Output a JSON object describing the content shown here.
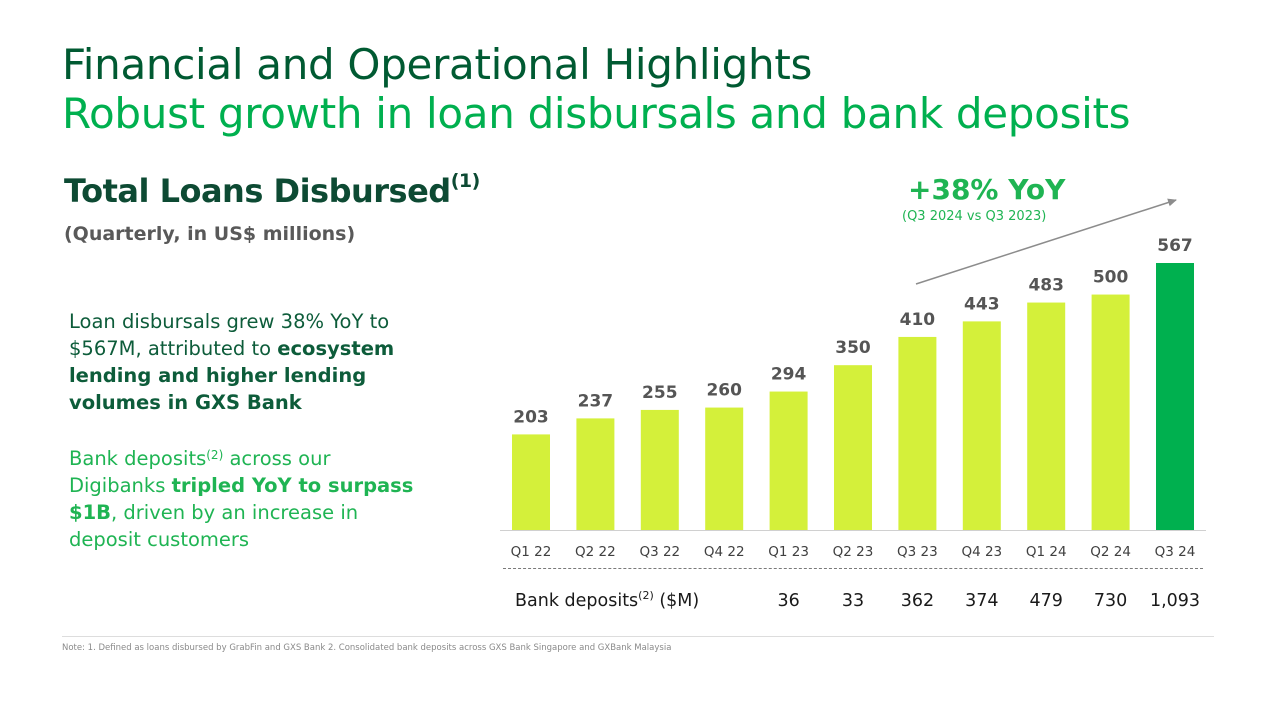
{
  "header": {
    "title": "Financial and Operational Highlights",
    "subtitle": "Robust growth in loan disbursals and bank deposits"
  },
  "left_panel": {
    "chart_title": "Total Loans Disbursed",
    "chart_title_sup": "(1)",
    "chart_subtitle": "(Quarterly, in US$ millions)",
    "para1_normal": "Loan disbursals grew 38% YoY to $567M, attributed to",
    "para1_bold": "ecosystem lending and higher lending volumes in GXS Bank",
    "para2_a": "Bank deposits",
    "para2_sup": "(2)",
    "para2_b": " across our Digibanks ",
    "para2_bold": "tripled YoY to surpass $1B",
    "para2_c": ", driven by an increase in deposit customers"
  },
  "annotation": {
    "yoy": "+38% YoY",
    "yoy_sub": "(Q3 2024 vs Q3 2023)"
  },
  "deposits": {
    "label": "Bank deposits",
    "label_sup": "(2)",
    "label_unit": " ($M)",
    "values": [
      "36",
      "33",
      "362",
      "374",
      "479",
      "730",
      "1,093"
    ]
  },
  "footnote": "Note: 1. Defined as loans disbursed by GrabFin and GXS Bank 2. Consolidated bank deposits across GXS Bank Singapore and GXBank Malaysia",
  "colors": {
    "bar": "#d4f03a",
    "bar_highlight": "#00b04f",
    "dark_green": "#005a32",
    "green": "#00b04f"
  },
  "chart_data": {
    "type": "bar",
    "title": "Total Loans Disbursed",
    "categories": [
      "Q1 22",
      "Q2 22",
      "Q3 22",
      "Q4 22",
      "Q1 23",
      "Q2 23",
      "Q3 23",
      "Q4 23",
      "Q1 24",
      "Q2 24",
      "Q3 24"
    ],
    "values": [
      203,
      237,
      255,
      260,
      294,
      350,
      410,
      443,
      483,
      500,
      567
    ],
    "highlight_index": 10,
    "ylim": [
      0,
      567
    ],
    "grid": false,
    "legend": "none"
  }
}
